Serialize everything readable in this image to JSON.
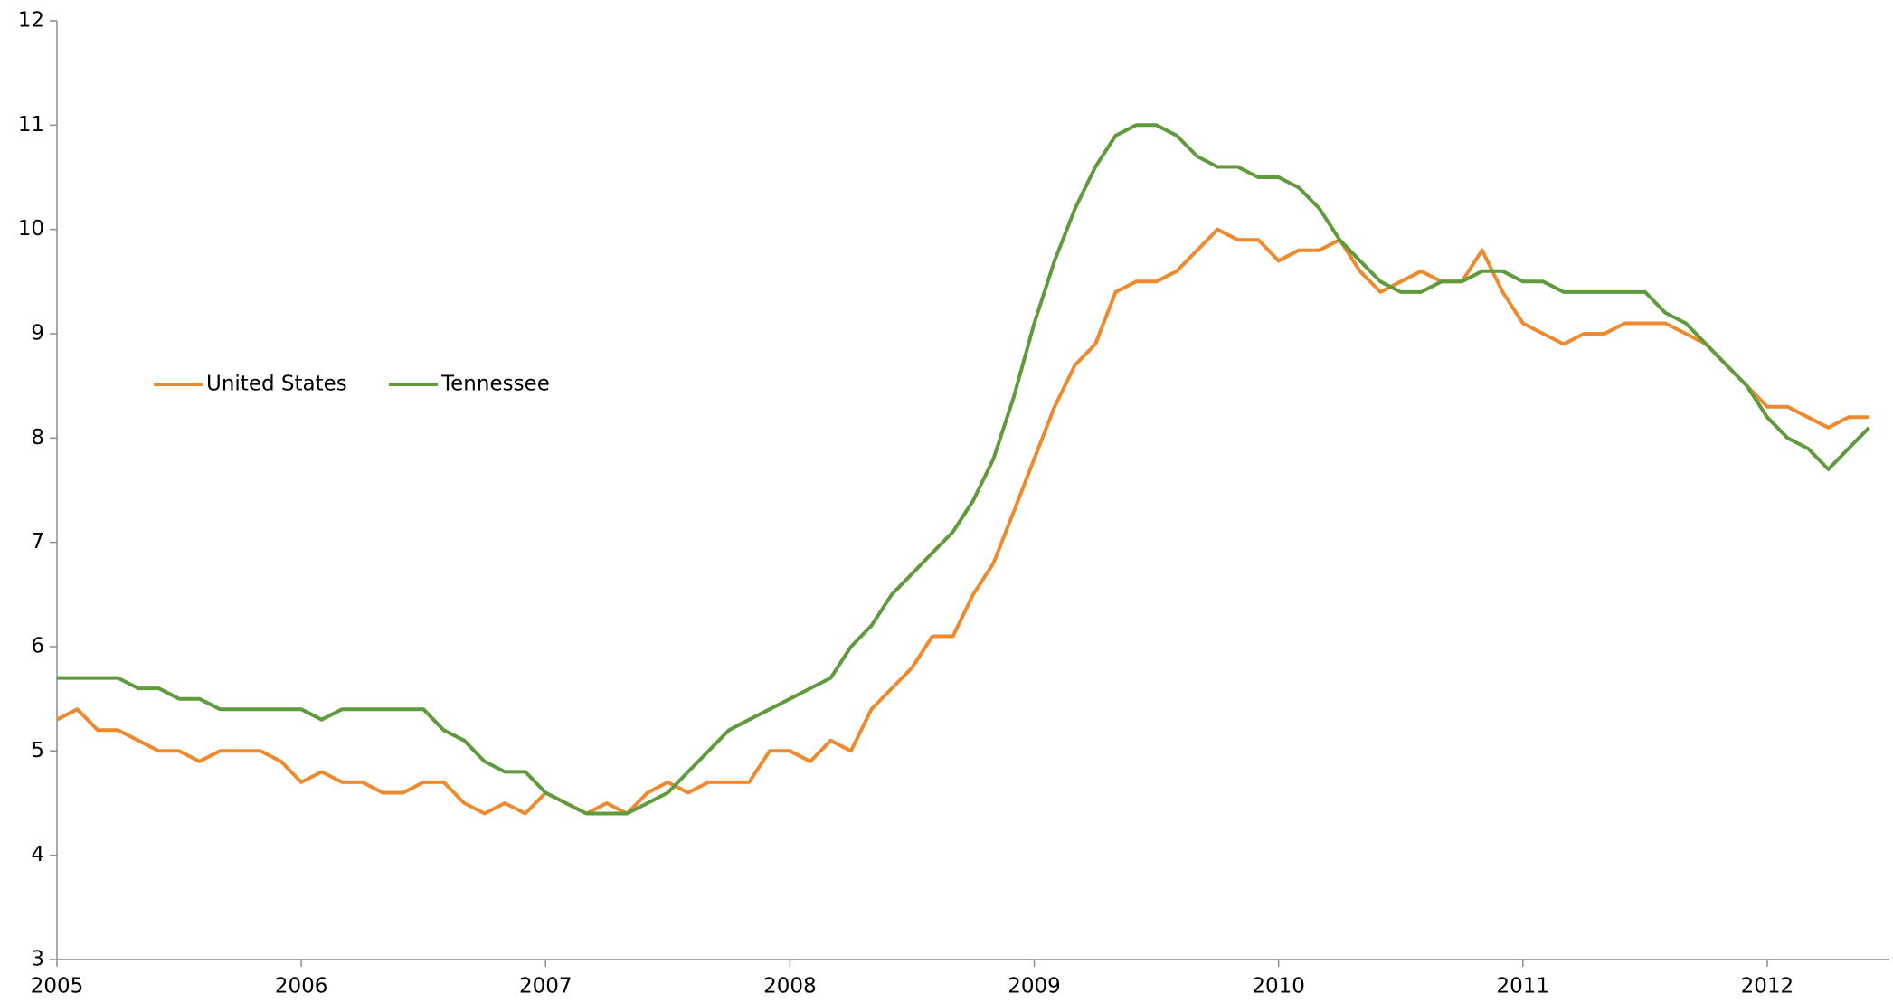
{
  "chart_data": {
    "type": "line",
    "x": [
      2005,
      2005.083,
      2005.167,
      2005.25,
      2005.333,
      2005.417,
      2005.5,
      2005.583,
      2005.667,
      2005.75,
      2005.833,
      2005.917,
      2006,
      2006.083,
      2006.167,
      2006.25,
      2006.333,
      2006.417,
      2006.5,
      2006.583,
      2006.667,
      2006.75,
      2006.833,
      2006.917,
      2007,
      2007.083,
      2007.167,
      2007.25,
      2007.333,
      2007.417,
      2007.5,
      2007.583,
      2007.667,
      2007.75,
      2007.833,
      2007.917,
      2008,
      2008.083,
      2008.167,
      2008.25,
      2008.333,
      2008.417,
      2008.5,
      2008.583,
      2008.667,
      2008.75,
      2008.833,
      2008.917,
      2009,
      2009.083,
      2009.167,
      2009.25,
      2009.333,
      2009.417,
      2009.5,
      2009.583,
      2009.667,
      2009.75,
      2009.833,
      2009.917,
      2010,
      2010.083,
      2010.167,
      2010.25,
      2010.333,
      2010.417,
      2010.5,
      2010.583,
      2010.667,
      2010.75,
      2010.833,
      2010.917,
      2011,
      2011.083,
      2011.167,
      2011.25,
      2011.333,
      2011.417,
      2011.5,
      2011.583,
      2011.667,
      2011.75,
      2011.833,
      2011.917,
      2012,
      2012.083,
      2012.167,
      2012.25,
      2012.333,
      2012.417
    ],
    "series": [
      {
        "name": "United States",
        "color": "#ee8a2d",
        "values": [
          5.3,
          5.4,
          5.2,
          5.2,
          5.1,
          5.0,
          5.0,
          4.9,
          5.0,
          5.0,
          5.0,
          4.9,
          4.7,
          4.8,
          4.7,
          4.7,
          4.6,
          4.6,
          4.7,
          4.7,
          4.5,
          4.4,
          4.5,
          4.4,
          4.6,
          4.5,
          4.4,
          4.5,
          4.4,
          4.6,
          4.7,
          4.6,
          4.7,
          4.7,
          4.7,
          5.0,
          5.0,
          4.9,
          5.1,
          5.0,
          5.4,
          5.6,
          5.8,
          6.1,
          6.1,
          6.5,
          6.8,
          7.3,
          7.8,
          8.3,
          8.7,
          8.9,
          9.4,
          9.5,
          9.5,
          9.6,
          9.8,
          10.0,
          9.9,
          9.9,
          9.7,
          9.8,
          9.8,
          9.9,
          9.6,
          9.4,
          9.5,
          9.6,
          9.5,
          9.5,
          9.8,
          9.4,
          9.1,
          9.0,
          8.9,
          9.0,
          9.0,
          9.1,
          9.1,
          9.1,
          9.0,
          8.9,
          8.7,
          8.5,
          8.3,
          8.3,
          8.2,
          8.1,
          8.2,
          8.2
        ]
      },
      {
        "name": "Tennessee",
        "color": "#5f9a3c",
        "values": [
          5.7,
          5.7,
          5.7,
          5.7,
          5.6,
          5.6,
          5.5,
          5.5,
          5.4,
          5.4,
          5.4,
          5.4,
          5.4,
          5.3,
          5.4,
          5.4,
          5.4,
          5.4,
          5.4,
          5.2,
          5.1,
          4.9,
          4.8,
          4.8,
          4.6,
          4.5,
          4.4,
          4.4,
          4.4,
          4.5,
          4.6,
          4.8,
          5.0,
          5.2,
          5.3,
          5.4,
          5.5,
          5.6,
          5.7,
          6.0,
          6.2,
          6.5,
          6.7,
          6.9,
          7.1,
          7.4,
          7.8,
          8.4,
          9.1,
          9.7,
          10.2,
          10.6,
          10.9,
          11.0,
          11.0,
          10.9,
          10.7,
          10.6,
          10.6,
          10.5,
          10.5,
          10.4,
          10.2,
          9.9,
          9.7,
          9.5,
          9.4,
          9.4,
          9.5,
          9.5,
          9.6,
          9.6,
          9.5,
          9.5,
          9.4,
          9.4,
          9.4,
          9.4,
          9.4,
          9.2,
          9.1,
          8.9,
          8.7,
          8.5,
          8.2,
          8.0,
          7.9,
          7.7,
          7.9,
          8.1
        ]
      }
    ],
    "xlim": [
      2005,
      2012.5
    ],
    "xticks": [
      2005,
      2006,
      2007,
      2008,
      2009,
      2010,
      2011,
      2012
    ],
    "ylim": [
      3,
      12
    ],
    "yticks": [
      3,
      4,
      5,
      6,
      7,
      8,
      9,
      10,
      11,
      12
    ],
    "grid": false
  }
}
